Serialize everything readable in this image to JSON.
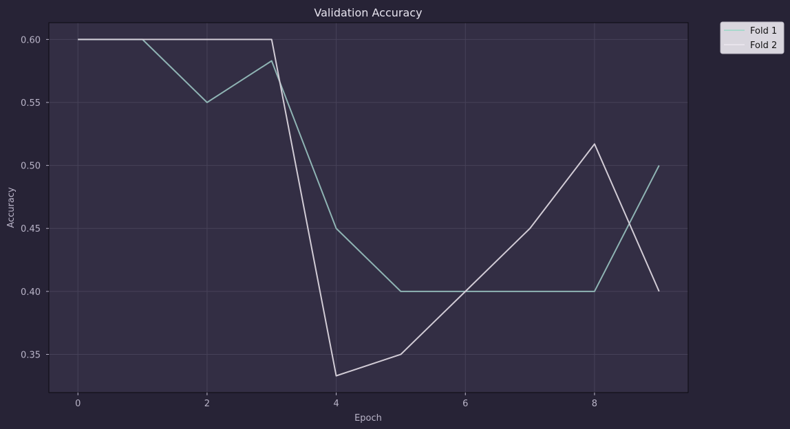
{
  "chart_data": {
    "type": "line",
    "title": "Validation Accuracy",
    "xlabel": "Epoch",
    "ylabel": "Accuracy",
    "x": [
      0,
      1,
      2,
      3,
      4,
      5,
      6,
      7,
      8,
      9
    ],
    "xlim": [
      -0.45,
      9.45
    ],
    "ylim": [
      0.3197,
      0.6133
    ],
    "xticks": [
      0,
      2,
      4,
      6,
      8
    ],
    "yticks": [
      0.35,
      0.4,
      0.45,
      0.5,
      0.55,
      0.6
    ],
    "xtick_labels": [
      "0",
      "2",
      "4",
      "6",
      "8"
    ],
    "ytick_labels": [
      "0.35",
      "0.40",
      "0.45",
      "0.50",
      "0.55",
      "0.60"
    ],
    "grid": true,
    "legend_position": "outside-top-right",
    "series": [
      {
        "name": "Fold 1",
        "color": "#8fb4b4",
        "values": [
          0.6,
          0.6,
          0.55,
          0.583,
          0.45,
          0.4,
          0.4,
          0.4,
          0.4,
          0.5
        ]
      },
      {
        "name": "Fold 2",
        "color": "#d2ccd6",
        "values": [
          0.6,
          0.6,
          0.6,
          0.6,
          0.333,
          0.35,
          0.4,
          0.45,
          0.517,
          0.4
        ]
      }
    ]
  },
  "colors": {
    "page_bg": "#272336",
    "plot_bg": "#332e44",
    "grid": "#474259",
    "axis": "#0b0a10",
    "legend_bg": "#d9d6de",
    "legend_line_fold1": "#a8d8cc",
    "legend_line_fold2": "#e8e4ec"
  }
}
